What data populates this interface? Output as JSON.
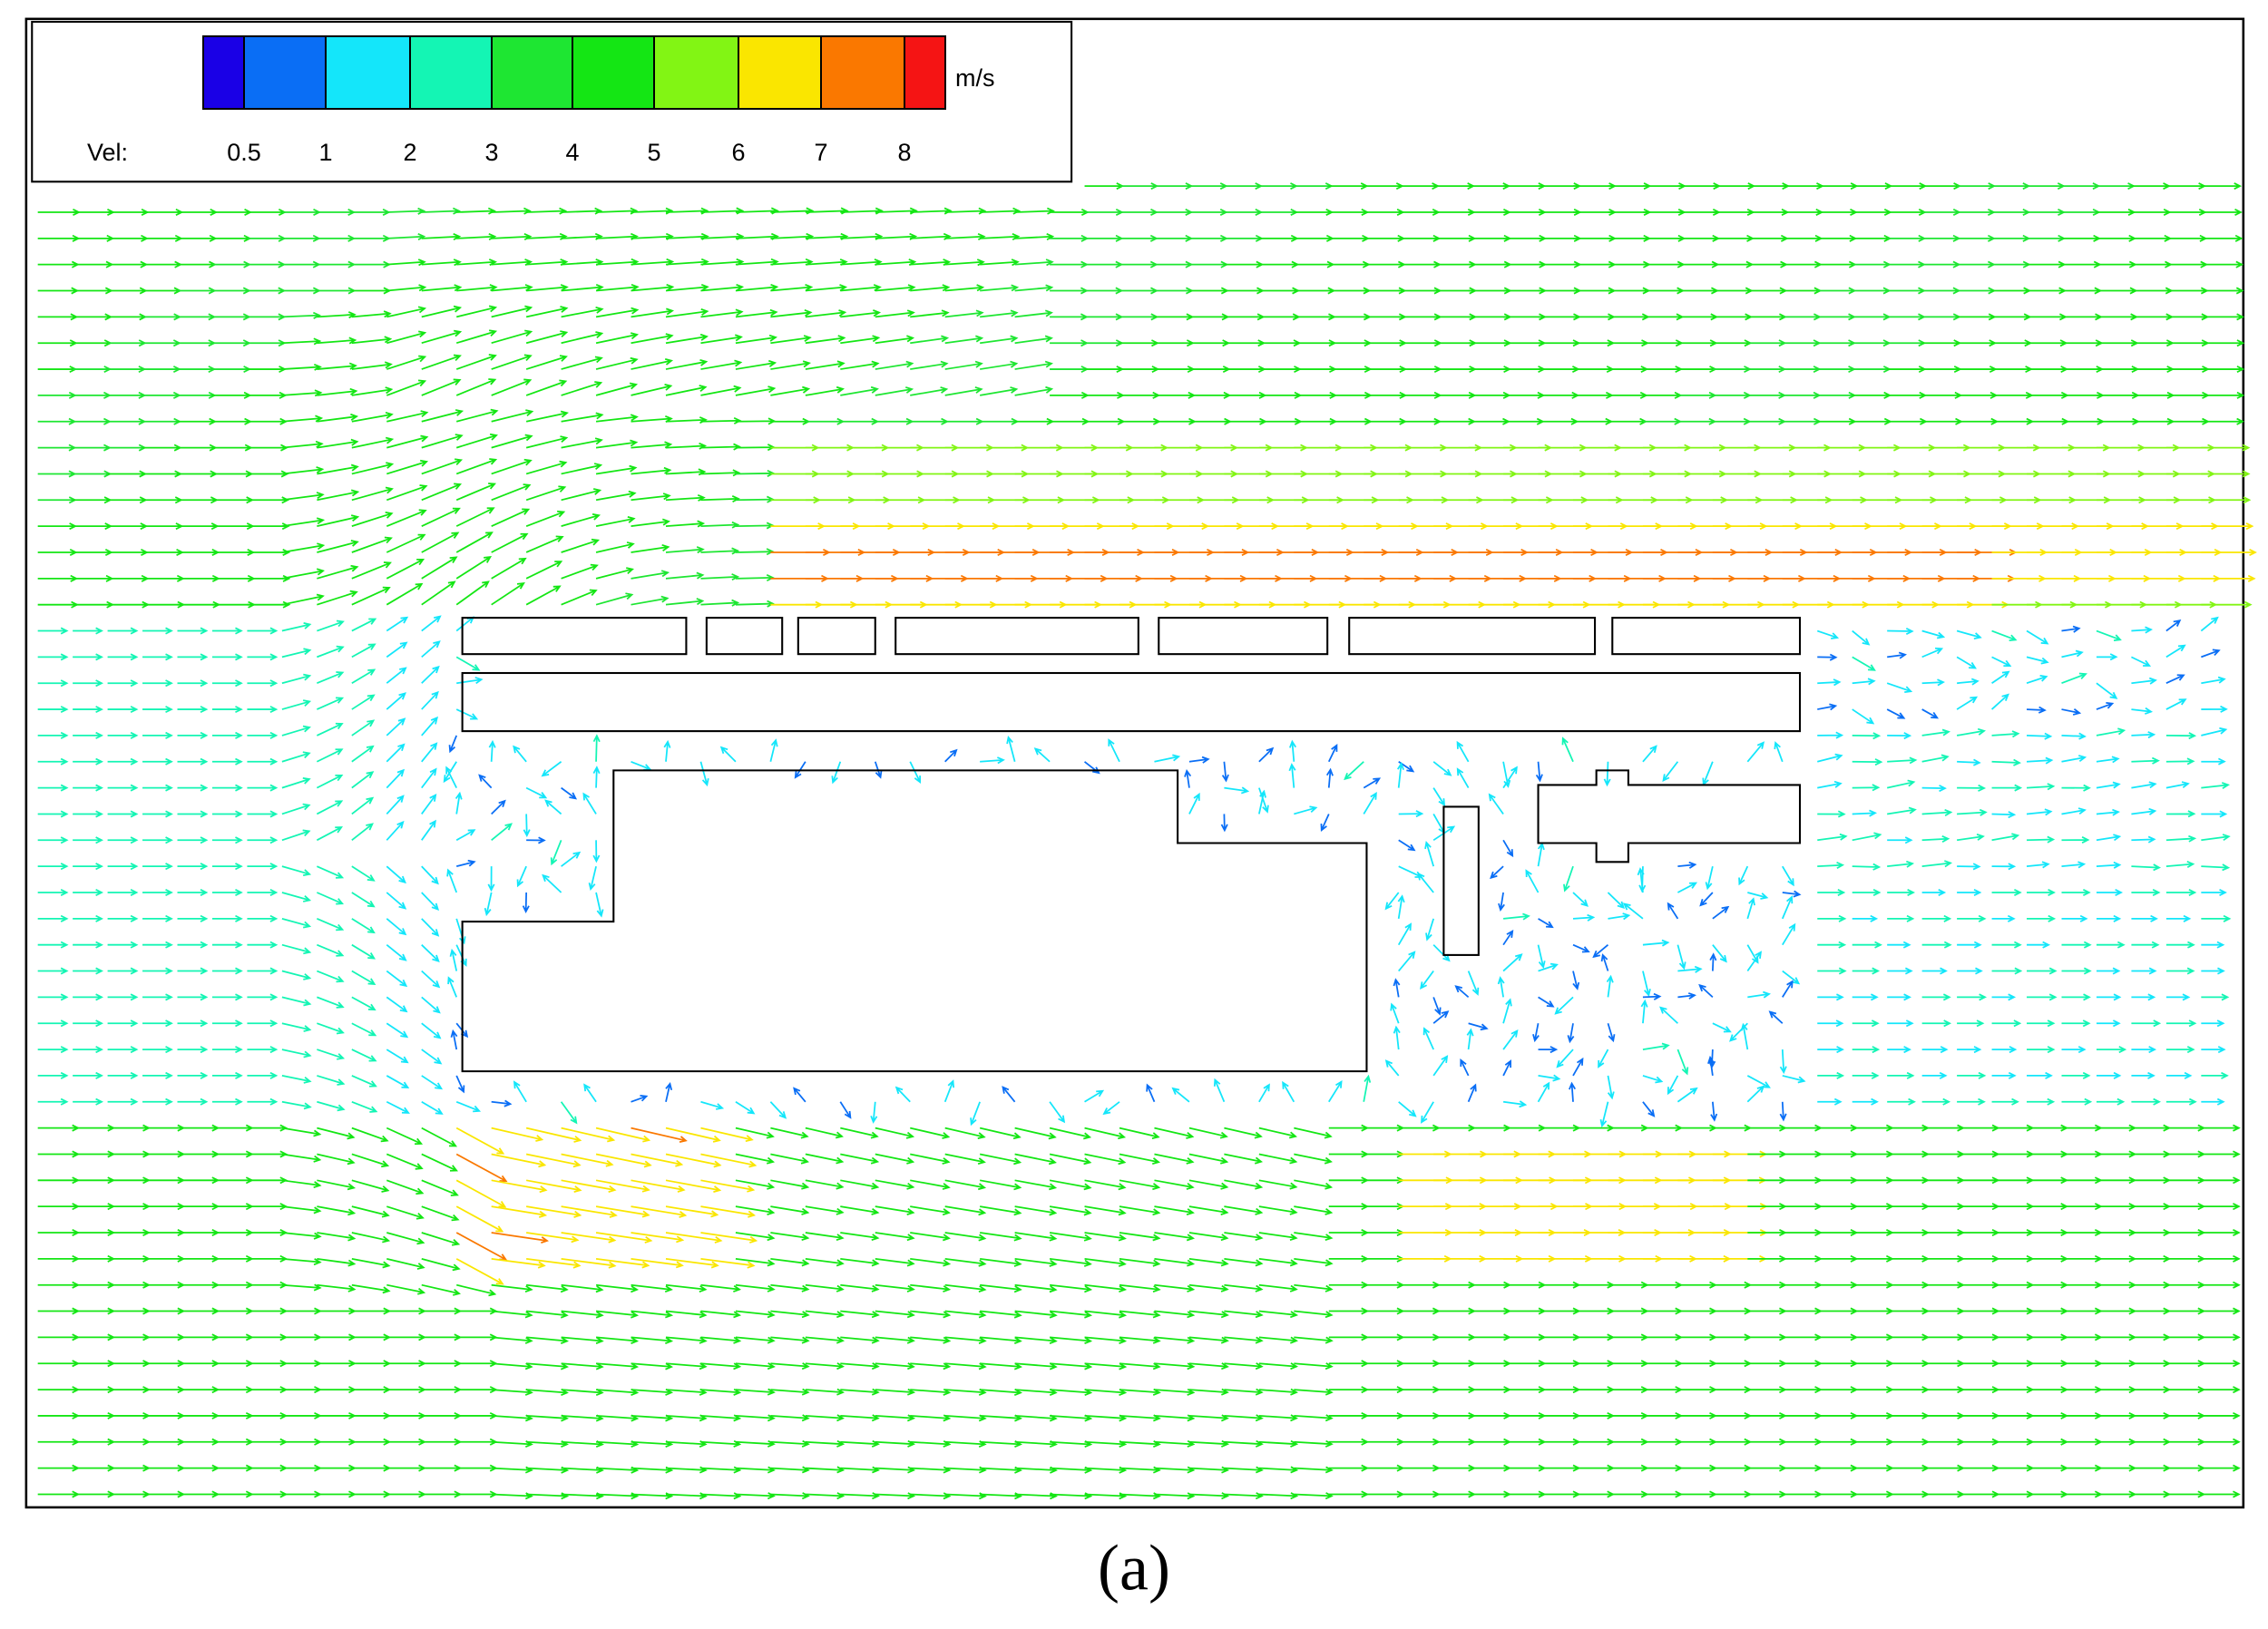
{
  "figure": {
    "caption": "(a)",
    "legend": {
      "label": "Vel:",
      "unit": "m/s",
      "ticks": [
        "0.5",
        "1",
        "2",
        "3",
        "4",
        "5",
        "6",
        "7",
        "8"
      ],
      "colors": [
        "#1a00e6",
        "#0a6ef5",
        "#14e6fa",
        "#14f5b4",
        "#1ee632",
        "#14e614",
        "#82f514",
        "#fae600",
        "#fa7800",
        "#f51414"
      ]
    }
  }
}
